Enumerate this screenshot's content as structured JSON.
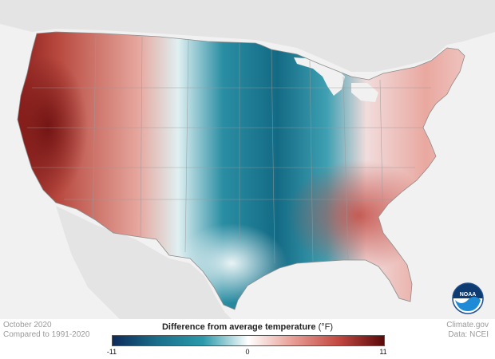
{
  "map": {
    "period": "October 2020",
    "baseline": "Compared to 1991-2020",
    "credit_site": "Climate.gov",
    "credit_data": "Data: NCEI",
    "logo_text": "NOAA",
    "icon": "noaa-logo"
  },
  "legend": {
    "title": "Difference from average temperature",
    "unit": "(°F)",
    "min_label": "-11",
    "mid_label": "0",
    "max_label": "11",
    "min": -11,
    "max": 11,
    "colors": [
      "#0d2b5c",
      "#1a6f8a",
      "#2a9aaa",
      "#ffffff",
      "#e79c94",
      "#c2473f",
      "#5a0a0a"
    ]
  },
  "colors": {
    "background": "#f1f1f1",
    "land_neutral": "#e6e6e6",
    "cold": "#1f7b93",
    "warm": "#b8473f"
  }
}
